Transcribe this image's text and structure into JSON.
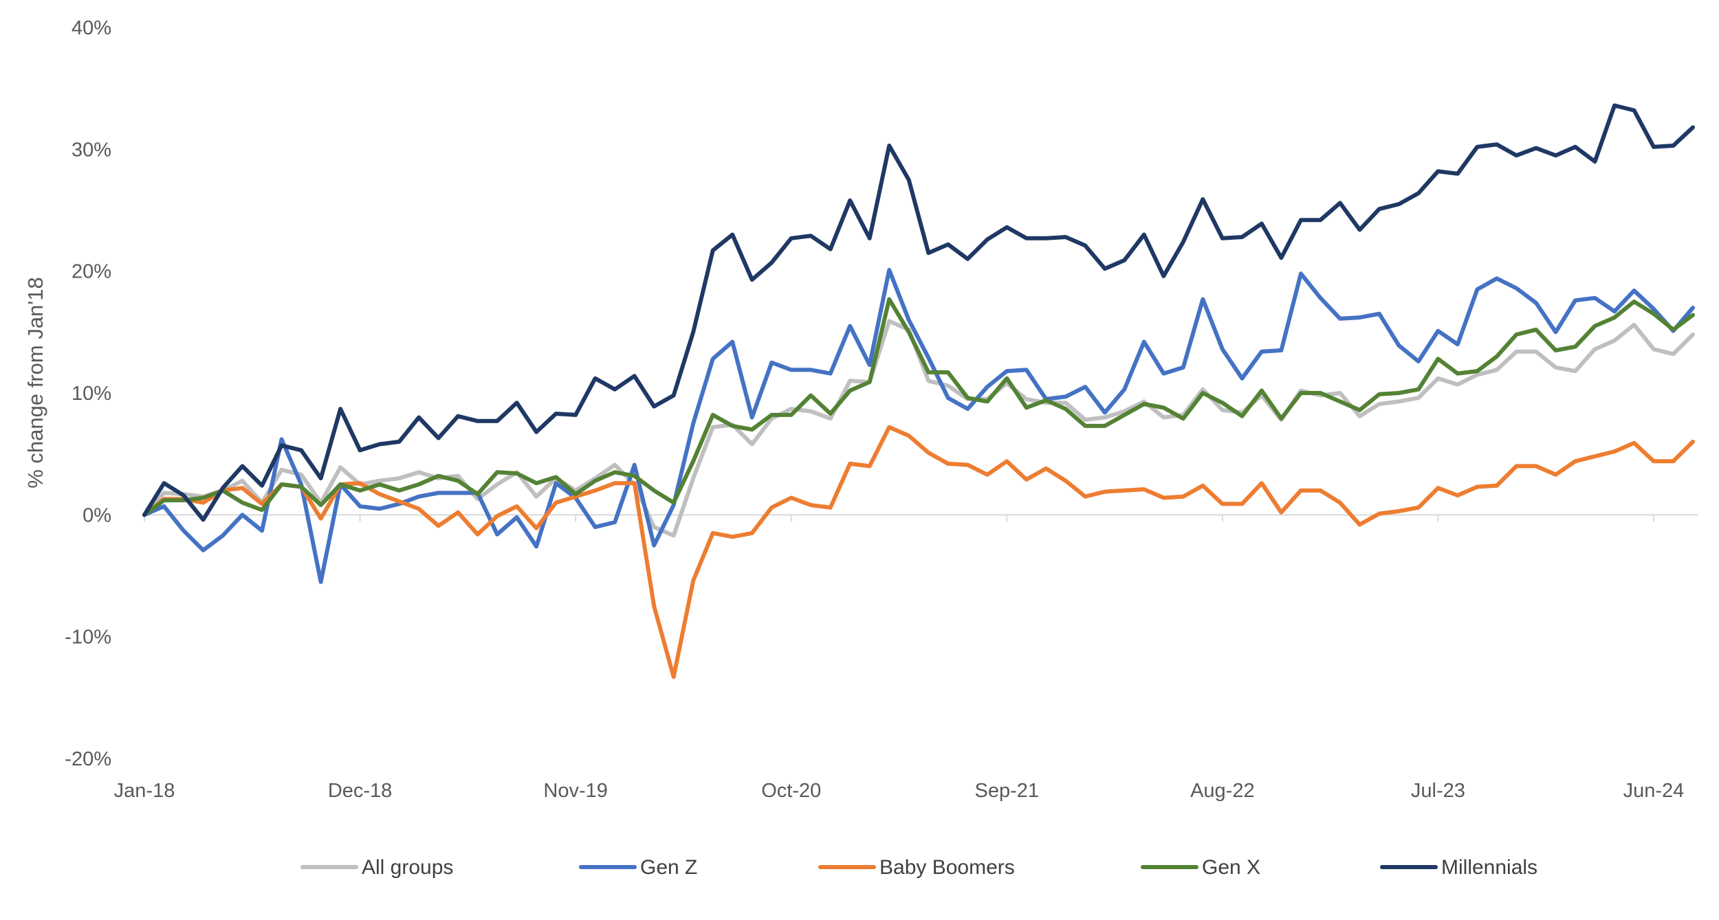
{
  "chart_data": {
    "type": "line",
    "title": "",
    "xlabel": "",
    "ylabel": "% change from Jan'18",
    "ylim": [
      -20,
      40
    ],
    "yticks": [
      "40%",
      "30%",
      "20%",
      "10%",
      "0%",
      "-10%",
      "-20%"
    ],
    "ytick_values": [
      40,
      30,
      20,
      10,
      0,
      -10,
      -20
    ],
    "x_tick_labels": [
      "Jan-18",
      "Dec-18",
      "Nov-19",
      "Oct-20",
      "Sep-21",
      "Aug-22",
      "Jul-23",
      "Jun-24"
    ],
    "x_tick_indices": [
      0,
      11,
      22,
      33,
      44,
      55,
      66,
      77
    ],
    "n_points": 80,
    "grid": false,
    "legend_position": "bottom",
    "series": [
      {
        "name": "All groups",
        "color": "#bfbfbf",
        "values": [
          0.0,
          1.8,
          1.7,
          1.5,
          2.0,
          2.8,
          1.0,
          3.7,
          3.3,
          1.0,
          3.9,
          2.5,
          2.8,
          3.0,
          3.5,
          3.0,
          3.2,
          1.3,
          2.5,
          3.5,
          1.5,
          3.0,
          2.0,
          3.0,
          4.1,
          2.5,
          -1.0,
          -1.7,
          3.0,
          7.2,
          7.4,
          5.8,
          7.9,
          8.7,
          8.5,
          7.9,
          11.0,
          10.9,
          15.9,
          15.2,
          11.0,
          10.6,
          9.5,
          9.5,
          10.8,
          9.5,
          9.2,
          9.2,
          7.8,
          8.0,
          8.5,
          9.3,
          8.0,
          8.2,
          10.3,
          8.6,
          8.4,
          9.8,
          7.8,
          10.2,
          9.8,
          10.0,
          8.1,
          9.1,
          9.3,
          9.6,
          11.2,
          10.7,
          11.5,
          11.9,
          13.4,
          13.4,
          12.1,
          11.8,
          13.6,
          14.3,
          15.6,
          13.6,
          13.2,
          14.8
        ]
      },
      {
        "name": "Gen Z",
        "color": "#4472c4",
        "values": [
          0.0,
          0.7,
          -1.3,
          -2.9,
          -1.7,
          0.0,
          -1.3,
          6.2,
          2.5,
          -5.5,
          2.5,
          0.7,
          0.5,
          0.9,
          1.5,
          1.8,
          1.8,
          1.8,
          -1.6,
          -0.2,
          -2.6,
          2.6,
          1.4,
          -1.0,
          -0.6,
          4.1,
          -2.5,
          0.8,
          7.5,
          12.8,
          14.2,
          8.0,
          12.5,
          11.9,
          11.9,
          11.6,
          15.5,
          12.3,
          20.1,
          16.0,
          12.9,
          9.6,
          8.7,
          10.5,
          11.8,
          11.9,
          9.5,
          9.7,
          10.5,
          8.4,
          10.3,
          14.2,
          11.6,
          12.1,
          17.7,
          13.6,
          11.2,
          13.4,
          13.5,
          19.8,
          17.8,
          16.1,
          16.2,
          16.5,
          13.9,
          12.6,
          15.1,
          14.0,
          18.5,
          19.4,
          18.6,
          17.4,
          15.0,
          17.6,
          17.8,
          16.7,
          18.4,
          16.9,
          15.1,
          17.0
        ]
      },
      {
        "name": "Baby Boomers",
        "color": "#ed7d31",
        "values": [
          0.0,
          1.3,
          1.3,
          1.0,
          2.0,
          2.2,
          0.9,
          2.5,
          2.3,
          -0.3,
          2.5,
          2.6,
          1.7,
          1.1,
          0.5,
          -0.9,
          0.2,
          -1.6,
          -0.1,
          0.7,
          -1.1,
          1.0,
          1.5,
          2.0,
          2.6,
          2.6,
          -7.5,
          -13.3,
          -5.4,
          -1.5,
          -1.8,
          -1.5,
          0.6,
          1.4,
          0.8,
          0.6,
          4.2,
          4.0,
          7.2,
          6.5,
          5.1,
          4.2,
          4.1,
          3.3,
          4.4,
          2.9,
          3.8,
          2.8,
          1.5,
          1.9,
          2.0,
          2.1,
          1.4,
          1.5,
          2.4,
          0.9,
          0.9,
          2.6,
          0.2,
          2.0,
          2.0,
          1.0,
          -0.8,
          0.1,
          0.3,
          0.6,
          2.2,
          1.6,
          2.3,
          2.4,
          4.0,
          4.0,
          3.3,
          4.4,
          4.8,
          5.2,
          5.9,
          4.4,
          4.4,
          6.0
        ]
      },
      {
        "name": "Gen X",
        "color": "#548235",
        "values": [
          0.0,
          1.2,
          1.2,
          1.4,
          2.0,
          1.0,
          0.4,
          2.5,
          2.3,
          0.8,
          2.5,
          2.0,
          2.5,
          2.0,
          2.5,
          3.2,
          2.8,
          1.7,
          3.5,
          3.4,
          2.6,
          3.1,
          1.7,
          2.8,
          3.5,
          3.2,
          2.0,
          1.0,
          4.4,
          8.2,
          7.3,
          7.0,
          8.2,
          8.2,
          9.8,
          8.3,
          10.2,
          10.9,
          17.7,
          15.0,
          11.7,
          11.7,
          9.6,
          9.3,
          11.2,
          8.8,
          9.4,
          8.7,
          7.3,
          7.3,
          8.2,
          9.1,
          8.8,
          7.9,
          10.0,
          9.2,
          8.1,
          10.2,
          7.9,
          10.0,
          10.0,
          9.3,
          8.6,
          9.9,
          10.0,
          10.3,
          12.8,
          11.6,
          11.8,
          13.0,
          14.8,
          15.2,
          13.5,
          13.8,
          15.5,
          16.2,
          17.5,
          16.5,
          15.2,
          16.4
        ]
      },
      {
        "name": "Millennials",
        "color": "#1f3864",
        "values": [
          0.0,
          2.6,
          1.6,
          -0.4,
          2.2,
          4.0,
          2.4,
          5.7,
          5.3,
          3.0,
          8.7,
          5.3,
          5.8,
          6.0,
          8.0,
          6.3,
          8.1,
          7.7,
          7.7,
          9.2,
          6.8,
          8.3,
          8.2,
          11.2,
          10.3,
          11.4,
          8.9,
          9.8,
          15.0,
          21.7,
          23.0,
          19.3,
          20.7,
          22.7,
          22.9,
          21.8,
          25.8,
          22.7,
          30.3,
          27.5,
          21.5,
          22.2,
          21.0,
          22.6,
          23.6,
          22.7,
          22.7,
          22.8,
          22.1,
          20.2,
          20.9,
          23.0,
          19.6,
          22.4,
          25.9,
          22.7,
          22.8,
          23.9,
          21.1,
          24.2,
          24.2,
          25.6,
          23.4,
          25.1,
          25.5,
          26.4,
          28.2,
          28.0,
          30.2,
          30.4,
          29.5,
          30.1,
          29.5,
          30.2,
          29.0,
          33.6,
          33.2,
          30.2,
          30.3,
          31.8
        ]
      }
    ]
  }
}
